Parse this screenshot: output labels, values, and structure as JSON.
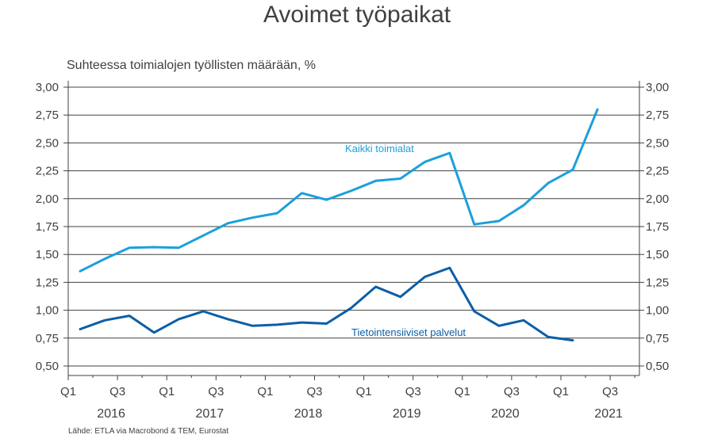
{
  "title": "Avoimet työpaikat",
  "subtitle": "Suhteessa toimialojen työllisten määrään, %",
  "source": "Lähde: ETLA via Macrobond & TEM, Eurostat",
  "chart_data": {
    "type": "line",
    "title": "Avoimet työpaikat",
    "ylabel": "Suhteessa toimialojen työllisten määrään, %",
    "ylim": [
      0.5,
      3.0
    ],
    "yticks": [
      "0,50",
      "0,75",
      "1,00",
      "1,25",
      "1,50",
      "1,75",
      "2,00",
      "2,25",
      "2,50",
      "2,75",
      "3,00"
    ],
    "grid": true,
    "x_periods": [
      "2016 Q1",
      "2016 Q2",
      "2016 Q3",
      "2016 Q4",
      "2017 Q1",
      "2017 Q2",
      "2017 Q3",
      "2017 Q4",
      "2018 Q1",
      "2018 Q2",
      "2018 Q3",
      "2018 Q4",
      "2019 Q1",
      "2019 Q2",
      "2019 Q3",
      "2019 Q4",
      "2020 Q1",
      "2020 Q2",
      "2020 Q3",
      "2020 Q4",
      "2021 Q1",
      "2021 Q2",
      "2021 Q3"
    ],
    "x_tick_labels": [
      "Q1",
      "Q3",
      "Q1",
      "Q3",
      "Q1",
      "Q3",
      "Q1",
      "Q3",
      "Q1",
      "Q3",
      "Q1",
      "Q3"
    ],
    "year_labels": [
      "2016",
      "2017",
      "2018",
      "2019",
      "2020",
      "2021"
    ],
    "series": [
      {
        "name": "Kaikki toimialat",
        "color": "#1aa0dc",
        "values": [
          1.35,
          1.46,
          1.56,
          1.565,
          1.56,
          1.67,
          1.78,
          1.83,
          1.87,
          2.05,
          1.99,
          2.07,
          2.16,
          2.18,
          2.33,
          2.41,
          1.77,
          1.8,
          1.94,
          2.14,
          2.26,
          2.8
        ]
      },
      {
        "name": "Tietointensiiviset palvelut",
        "color": "#0b5ea8",
        "values": [
          0.83,
          0.91,
          0.95,
          0.8,
          0.92,
          0.99,
          0.92,
          0.86,
          0.87,
          0.89,
          0.88,
          1.02,
          1.21,
          1.12,
          1.3,
          1.38,
          0.99,
          0.86,
          0.91,
          0.76,
          0.73
        ]
      }
    ]
  }
}
